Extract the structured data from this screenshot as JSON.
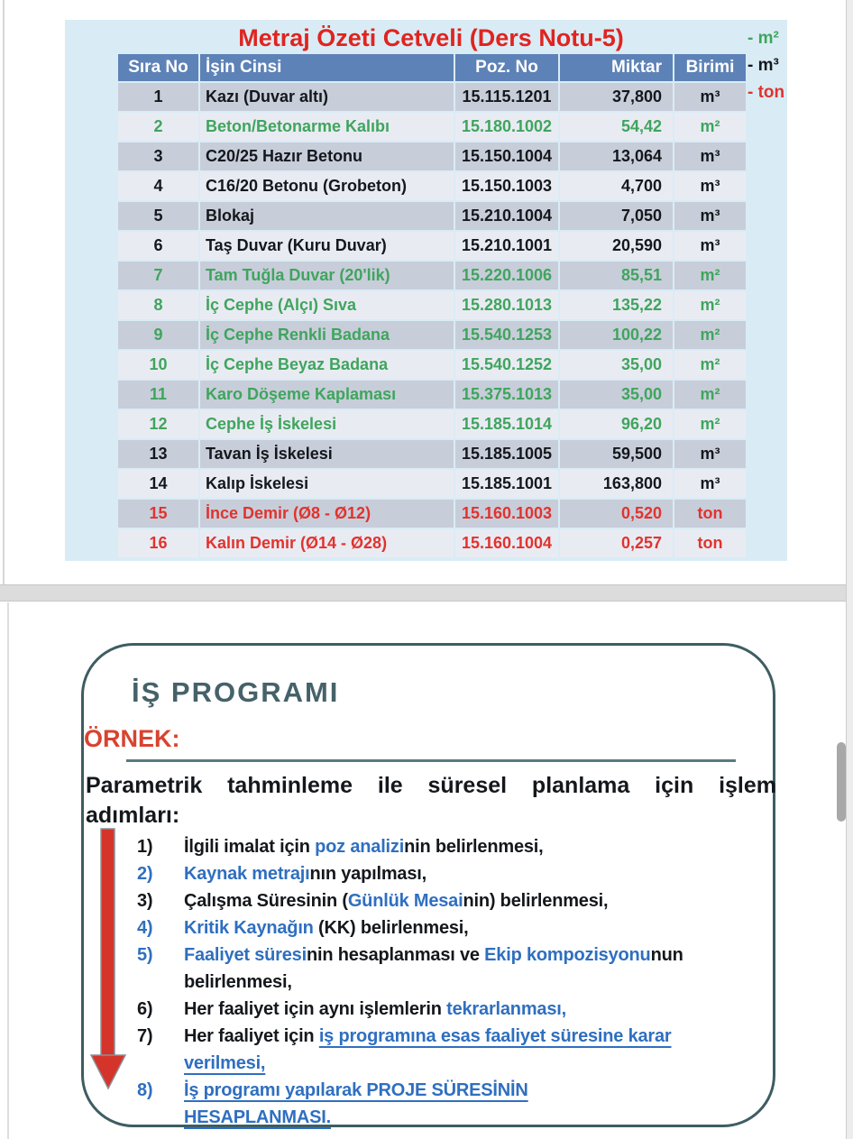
{
  "colors": {
    "black": "#14181c",
    "green": "#3fa55d",
    "red": "#e1332d",
    "blue": "#2f6fc0",
    "title_red": "#e02420",
    "header_blue": "#5d82b7",
    "teal": "#456269",
    "arrow_red": "#d5342a",
    "slide_bg": "#d9ecf5"
  },
  "top_panel": {
    "title": "Metraj Özeti Cetveli (Ders Notu-5)",
    "legend": [
      {
        "label": "- m²",
        "color": "green"
      },
      {
        "label": "- m³",
        "color": "black"
      },
      {
        "label": "- ton",
        "color": "red"
      }
    ],
    "table": {
      "headers": [
        "Sıra No",
        "İşin Cinsi",
        "Poz. No",
        "Miktar",
        "Birimi"
      ],
      "rows": [
        {
          "no": "1",
          "cinsi": "Kazı (Duvar altı)",
          "poz": "15.115.1201",
          "miktar": "37,800",
          "birim": "m³",
          "color": "black"
        },
        {
          "no": "2",
          "cinsi": "Beton/Betonarme Kalıbı",
          "poz": "15.180.1002",
          "miktar": "54,42",
          "birim": "m²",
          "color": "green"
        },
        {
          "no": "3",
          "cinsi": "C20/25 Hazır Betonu",
          "poz": "15.150.1004",
          "miktar": "13,064",
          "birim": "m³",
          "color": "black"
        },
        {
          "no": "4",
          "cinsi": "C16/20 Betonu (Grobeton)",
          "poz": "15.150.1003",
          "miktar": "4,700",
          "birim": "m³",
          "color": "black"
        },
        {
          "no": "5",
          "cinsi": "Blokaj",
          "poz": "15.210.1004",
          "miktar": "7,050",
          "birim": "m³",
          "color": "black"
        },
        {
          "no": "6",
          "cinsi": "Taş Duvar (Kuru Duvar)",
          "poz": "15.210.1001",
          "miktar": "20,590",
          "birim": "m³",
          "color": "black"
        },
        {
          "no": "7",
          "cinsi": "Tam Tuğla Duvar (20'lik)",
          "poz": "15.220.1006",
          "miktar": "85,51",
          "birim": "m²",
          "color": "green"
        },
        {
          "no": "8",
          "cinsi": "İç Cephe (Alçı) Sıva",
          "poz": "15.280.1013",
          "miktar": "135,22",
          "birim": "m²",
          "color": "green"
        },
        {
          "no": "9",
          "cinsi": "İç Cephe Renkli Badana",
          "poz": "15.540.1253",
          "miktar": "100,22",
          "birim": "m²",
          "color": "green"
        },
        {
          "no": "10",
          "cinsi": "İç Cephe Beyaz Badana",
          "poz": "15.540.1252",
          "miktar": "35,00",
          "birim": "m²",
          "color": "green"
        },
        {
          "no": "11",
          "cinsi": "Karo Döşeme Kaplaması",
          "poz": "15.375.1013",
          "miktar": "35,00",
          "birim": "m²",
          "color": "green"
        },
        {
          "no": "12",
          "cinsi": "Cephe İş İskelesi",
          "poz": "15.185.1014",
          "miktar": "96,20",
          "birim": "m²",
          "color": "green"
        },
        {
          "no": "13",
          "cinsi": "Tavan İş İskelesi",
          "poz": "15.185.1005",
          "miktar": "59,500",
          "birim": "m³",
          "color": "black"
        },
        {
          "no": "14",
          "cinsi": "Kalıp İskelesi",
          "poz": "15.185.1001",
          "miktar": "163,800",
          "birim": "m³",
          "color": "black"
        },
        {
          "no": "15",
          "cinsi": "İnce Demir (Ø8 - Ø12)",
          "poz": "15.160.1003",
          "miktar": "0,520",
          "birim": "ton",
          "color": "red"
        },
        {
          "no": "16",
          "cinsi": "Kalın Demir (Ø14 - Ø28)",
          "poz": "15.160.1004",
          "miktar": "0,257",
          "birim": "ton",
          "color": "red"
        }
      ]
    }
  },
  "bottom_panel": {
    "heading": "İŞ PROGRAMI",
    "ornek_label": "ÖRNEK:",
    "intro_line1": "Parametrik tahminleme ile süresel planlama için işlem",
    "intro_line2": "adımları:",
    "arrow_icon": "red-down-arrow",
    "steps": [
      {
        "num": "1)",
        "num_color": "black",
        "lines": [
          [
            {
              "t": "İlgili imalat için ",
              "c": "black"
            },
            {
              "t": "poz analizi",
              "c": "blue"
            },
            {
              "t": "nin belirlenmesi,",
              "c": "black"
            }
          ]
        ]
      },
      {
        "num": "2)",
        "num_color": "blue",
        "lines": [
          [
            {
              "t": "Kaynak metrajı",
              "c": "blue"
            },
            {
              "t": "nın yapılması,",
              "c": "black"
            }
          ]
        ]
      },
      {
        "num": "3)",
        "num_color": "black",
        "lines": [
          [
            {
              "t": "Çalışma Süresinin (",
              "c": "black"
            },
            {
              "t": "Günlük Mesai",
              "c": "blue"
            },
            {
              "t": "nin) belirlenmesi,",
              "c": "black"
            }
          ]
        ]
      },
      {
        "num": "4)",
        "num_color": "blue",
        "lines": [
          [
            {
              "t": "Kritik Kaynağın",
              "c": "blue"
            },
            {
              "t": " (KK) belirlenmesi,",
              "c": "black"
            }
          ]
        ]
      },
      {
        "num": "5)",
        "num_color": "blue",
        "lines": [
          [
            {
              "t": "Faaliyet süresi",
              "c": "blue"
            },
            {
              "t": "nin hesaplanması ve ",
              "c": "black"
            },
            {
              "t": "Ekip kompozisyonu",
              "c": "blue"
            },
            {
              "t": "nun",
              "c": "black"
            }
          ],
          [
            {
              "t": "belirlenmesi,",
              "c": "black"
            }
          ]
        ]
      },
      {
        "num": "6)",
        "num_color": "black",
        "lines": [
          [
            {
              "t": "Her faaliyet için aynı işlemlerin ",
              "c": "black"
            },
            {
              "t": "tekrarlanması,",
              "c": "blue"
            }
          ]
        ]
      },
      {
        "num": "7)",
        "num_color": "black",
        "lines": [
          [
            {
              "t": "Her faaliyet için ",
              "c": "black"
            },
            {
              "t": "iş programına esas faaliyet süresine karar",
              "c": "blue",
              "u": true
            }
          ],
          [
            {
              "t": "verilmesi,",
              "c": "blue",
              "u": true
            }
          ]
        ]
      },
      {
        "num": "8)",
        "num_color": "blue",
        "lines": [
          [
            {
              "t": "İş programı yapılarak PROJE SÜRESİNİN",
              "c": "blue",
              "u": true
            }
          ],
          [
            {
              "t": "HESAPLANMASI.",
              "c": "blue",
              "u": true
            }
          ]
        ]
      }
    ]
  }
}
